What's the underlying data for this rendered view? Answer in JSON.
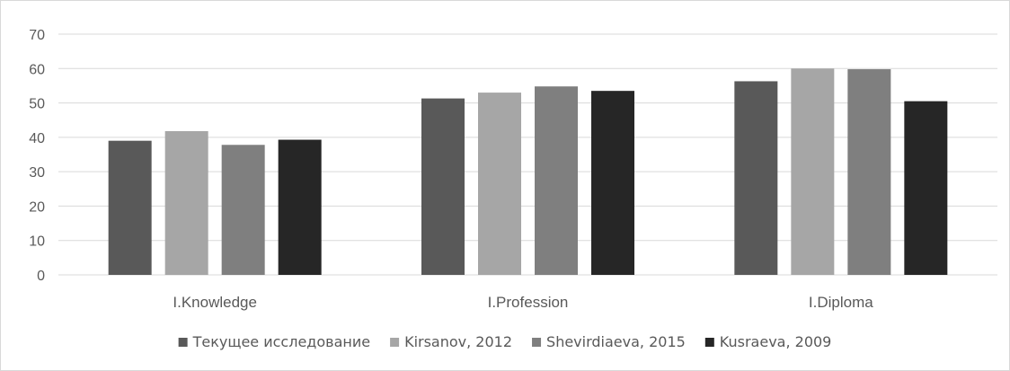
{
  "chart_data": {
    "type": "bar",
    "title": "",
    "xlabel": "",
    "ylabel": "",
    "ylim": [
      0,
      70
    ],
    "yticks": [
      0,
      10,
      20,
      30,
      40,
      50,
      60,
      70
    ],
    "grid": true,
    "legend_position": "bottom",
    "categories": [
      "I.Knowledge",
      "I.Profession",
      "I.Diploma"
    ],
    "series": [
      {
        "name": "Текущее исследование",
        "color": "#595959",
        "values": [
          39,
          51.3,
          56.3
        ]
      },
      {
        "name": "Kirsanov, 2012",
        "color": "#a6a6a6",
        "values": [
          41.8,
          53,
          60
        ]
      },
      {
        "name": "Shevirdiaeva, 2015",
        "color": "#7f7f7f",
        "values": [
          37.8,
          54.8,
          59.8
        ]
      },
      {
        "name": "Kusraeva, 2009",
        "color": "#262626",
        "values": [
          39.3,
          53.5,
          50.5
        ]
      }
    ]
  }
}
